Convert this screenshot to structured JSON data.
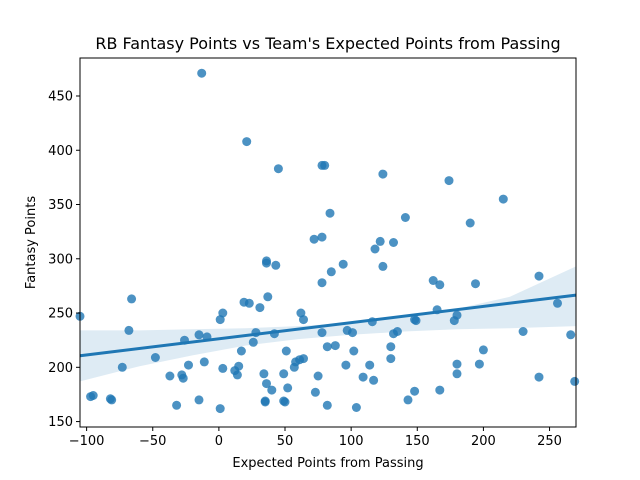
{
  "chart_data": {
    "type": "scatter",
    "title": "RB Fantasy Points vs Team's Expected Points from Passing",
    "xlabel": "Expected Points from Passing",
    "ylabel": "Fantasy Points",
    "xlim": [
      -105,
      270
    ],
    "ylim": [
      145,
      485
    ],
    "xticks": [
      -100,
      -50,
      0,
      50,
      100,
      150,
      200,
      250
    ],
    "yticks": [
      150,
      200,
      250,
      300,
      350,
      400,
      450
    ],
    "xtick_labels": [
      "−100",
      "−50",
      "0",
      "50",
      "100",
      "150",
      "200",
      "250"
    ],
    "ytick_labels": [
      "150",
      "200",
      "250",
      "300",
      "350",
      "400",
      "450"
    ],
    "grid": false,
    "colors": {
      "points": "#1f77b4",
      "line": "#1f77b4",
      "ci_band": "#1f77b4"
    },
    "regression": {
      "x": [
        -105,
        270
      ],
      "y": [
        210.6,
        266.5
      ]
    },
    "ci_band": {
      "x": [
        -105,
        -60,
        -20,
        20,
        60,
        100,
        140,
        180,
        220,
        270
      ],
      "lower": [
        187,
        201,
        211,
        220,
        226,
        230,
        233,
        235,
        236,
        238
      ],
      "upper": [
        234,
        234,
        235,
        236,
        238,
        241,
        246,
        254,
        265,
        293
      ]
    },
    "points": [
      {
        "x": -13,
        "y": 471
      },
      {
        "x": 21,
        "y": 408
      },
      {
        "x": 45,
        "y": 383
      },
      {
        "x": 78,
        "y": 386
      },
      {
        "x": 80,
        "y": 386
      },
      {
        "x": 124,
        "y": 378
      },
      {
        "x": 174,
        "y": 372
      },
      {
        "x": 84,
        "y": 342
      },
      {
        "x": 141,
        "y": 338
      },
      {
        "x": 190,
        "y": 333
      },
      {
        "x": 215,
        "y": 355
      },
      {
        "x": 78,
        "y": 320
      },
      {
        "x": 72,
        "y": 318
      },
      {
        "x": 122,
        "y": 316
      },
      {
        "x": 132,
        "y": 315
      },
      {
        "x": 118,
        "y": 309
      },
      {
        "x": 36,
        "y": 298
      },
      {
        "x": 36,
        "y": 296
      },
      {
        "x": 43,
        "y": 294
      },
      {
        "x": 94,
        "y": 295
      },
      {
        "x": 124,
        "y": 293
      },
      {
        "x": 85,
        "y": 288
      },
      {
        "x": 78,
        "y": 278
      },
      {
        "x": 162,
        "y": 280
      },
      {
        "x": 167,
        "y": 276
      },
      {
        "x": 194,
        "y": 277
      },
      {
        "x": 242,
        "y": 284
      },
      {
        "x": -66,
        "y": 263
      },
      {
        "x": 19,
        "y": 260
      },
      {
        "x": 23,
        "y": 259
      },
      {
        "x": 37,
        "y": 265
      },
      {
        "x": 31,
        "y": 255
      },
      {
        "x": -105,
        "y": 247
      },
      {
        "x": 3,
        "y": 250
      },
      {
        "x": 1,
        "y": 244
      },
      {
        "x": 62,
        "y": 250
      },
      {
        "x": 64,
        "y": 244
      },
      {
        "x": 149,
        "y": 243
      },
      {
        "x": 148,
        "y": 244
      },
      {
        "x": 178,
        "y": 243
      },
      {
        "x": 180,
        "y": 248
      },
      {
        "x": 116,
        "y": 242
      },
      {
        "x": 165,
        "y": 253
      },
      {
        "x": 256,
        "y": 259
      },
      {
        "x": -68,
        "y": 234
      },
      {
        "x": -15,
        "y": 230
      },
      {
        "x": -9,
        "y": 228
      },
      {
        "x": -26,
        "y": 225
      },
      {
        "x": 28,
        "y": 232
      },
      {
        "x": 42,
        "y": 231
      },
      {
        "x": 78,
        "y": 232
      },
      {
        "x": 97,
        "y": 234
      },
      {
        "x": 101,
        "y": 232
      },
      {
        "x": 132,
        "y": 231
      },
      {
        "x": 135,
        "y": 233
      },
      {
        "x": 230,
        "y": 233
      },
      {
        "x": 266,
        "y": 230
      },
      {
        "x": 26,
        "y": 223
      },
      {
        "x": 82,
        "y": 219
      },
      {
        "x": 88,
        "y": 220
      },
      {
        "x": 130,
        "y": 219
      },
      {
        "x": 17,
        "y": 215
      },
      {
        "x": 51,
        "y": 215
      },
      {
        "x": 102,
        "y": 215
      },
      {
        "x": 200,
        "y": 216
      },
      {
        "x": -48,
        "y": 209
      },
      {
        "x": -11,
        "y": 205
      },
      {
        "x": -23,
        "y": 202
      },
      {
        "x": 15,
        "y": 201
      },
      {
        "x": 58,
        "y": 205
      },
      {
        "x": 61,
        "y": 207
      },
      {
        "x": 64,
        "y": 208
      },
      {
        "x": 57,
        "y": 200
      },
      {
        "x": 96,
        "y": 202
      },
      {
        "x": 114,
        "y": 202
      },
      {
        "x": 130,
        "y": 208
      },
      {
        "x": 180,
        "y": 203
      },
      {
        "x": 197,
        "y": 203
      },
      {
        "x": -73,
        "y": 200
      },
      {
        "x": 3,
        "y": 199
      },
      {
        "x": 12,
        "y": 197
      },
      {
        "x": 14,
        "y": 193
      },
      {
        "x": -37,
        "y": 192
      },
      {
        "x": -28,
        "y": 193
      },
      {
        "x": -27,
        "y": 190
      },
      {
        "x": 34,
        "y": 194
      },
      {
        "x": 49,
        "y": 194
      },
      {
        "x": 75,
        "y": 192
      },
      {
        "x": 109,
        "y": 191
      },
      {
        "x": 117,
        "y": 188
      },
      {
        "x": 180,
        "y": 194
      },
      {
        "x": 242,
        "y": 191
      },
      {
        "x": 269,
        "y": 187
      },
      {
        "x": 36,
        "y": 185
      },
      {
        "x": 40,
        "y": 179
      },
      {
        "x": 52,
        "y": 181
      },
      {
        "x": 73,
        "y": 177
      },
      {
        "x": 148,
        "y": 178
      },
      {
        "x": 167,
        "y": 179
      },
      {
        "x": -97,
        "y": 173
      },
      {
        "x": -95,
        "y": 174
      },
      {
        "x": -82,
        "y": 171
      },
      {
        "x": -81,
        "y": 170
      },
      {
        "x": -15,
        "y": 170
      },
      {
        "x": 35,
        "y": 169
      },
      {
        "x": 35,
        "y": 168
      },
      {
        "x": 49,
        "y": 169
      },
      {
        "x": 50,
        "y": 168
      },
      {
        "x": 143,
        "y": 170
      },
      {
        "x": -32,
        "y": 165
      },
      {
        "x": 1,
        "y": 162
      },
      {
        "x": 82,
        "y": 165
      },
      {
        "x": 104,
        "y": 163
      }
    ]
  }
}
